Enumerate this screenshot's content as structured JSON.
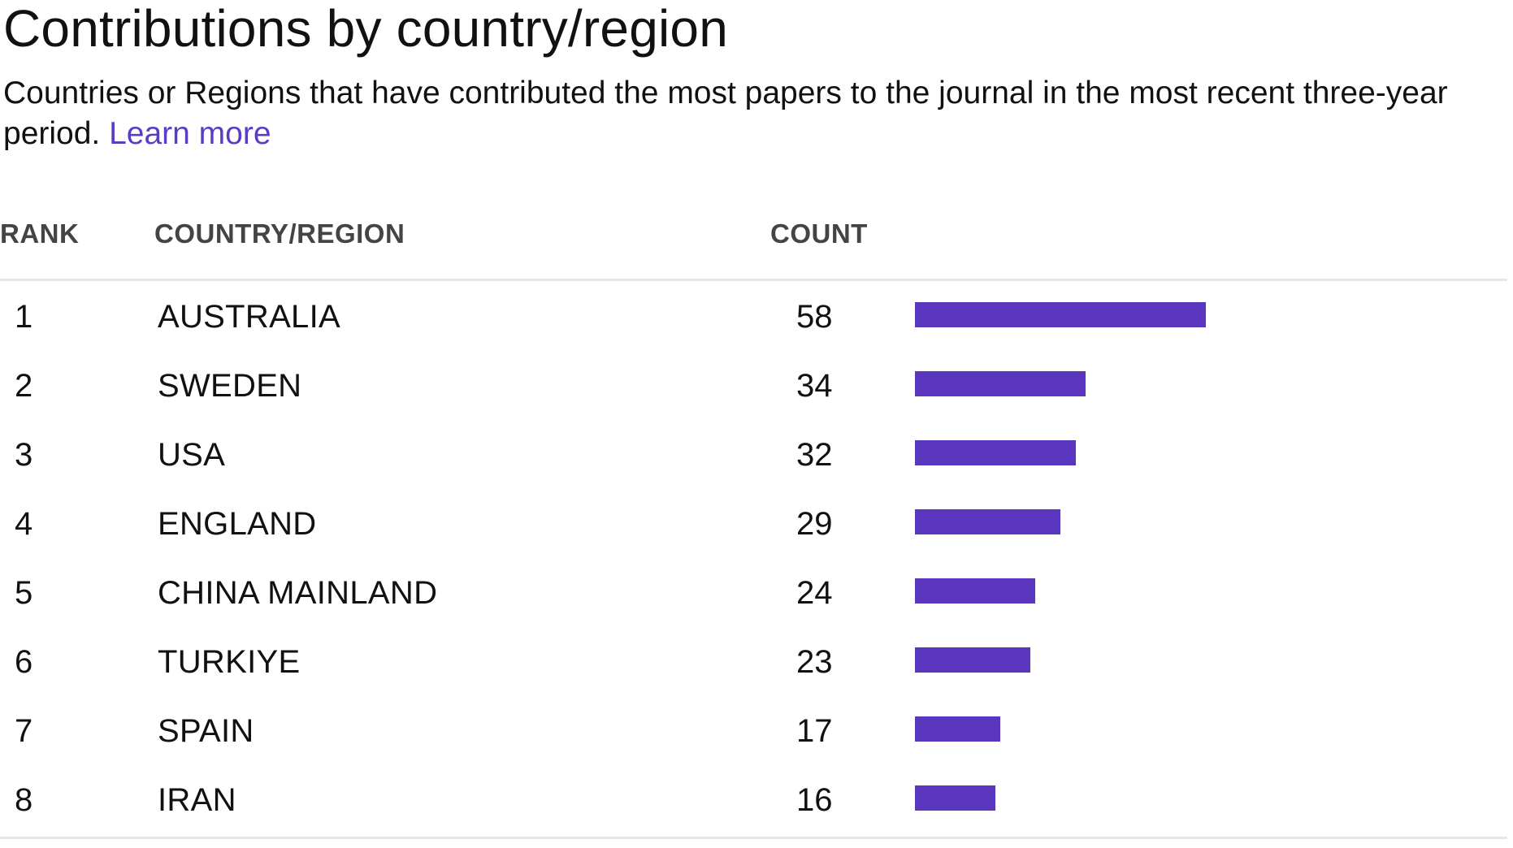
{
  "title": "Contributions by country/region",
  "description": "Countries or Regions that have contributed the most papers to the journal in the most recent three-year period.",
  "learn_more": "Learn more",
  "table": {
    "headers": {
      "rank": "RANK",
      "country": "COUNTRY/REGION",
      "count": "COUNT"
    }
  },
  "colors": {
    "accent": "#5a36bf",
    "link": "#5b3cc4"
  },
  "chart_data": {
    "type": "bar",
    "orientation": "horizontal",
    "title": "Contributions by country/region",
    "categories": [
      "AUSTRALIA",
      "SWEDEN",
      "USA",
      "ENGLAND",
      "CHINA MAINLAND",
      "TURKIYE",
      "SPAIN",
      "IRAN"
    ],
    "ranks": [
      "1",
      "2",
      "3",
      "4",
      "5",
      "6",
      "7",
      "8"
    ],
    "values": [
      58,
      34,
      32,
      29,
      24,
      23,
      17,
      16
    ],
    "xlim": [
      0,
      58
    ],
    "grid": false,
    "legend": "none"
  }
}
